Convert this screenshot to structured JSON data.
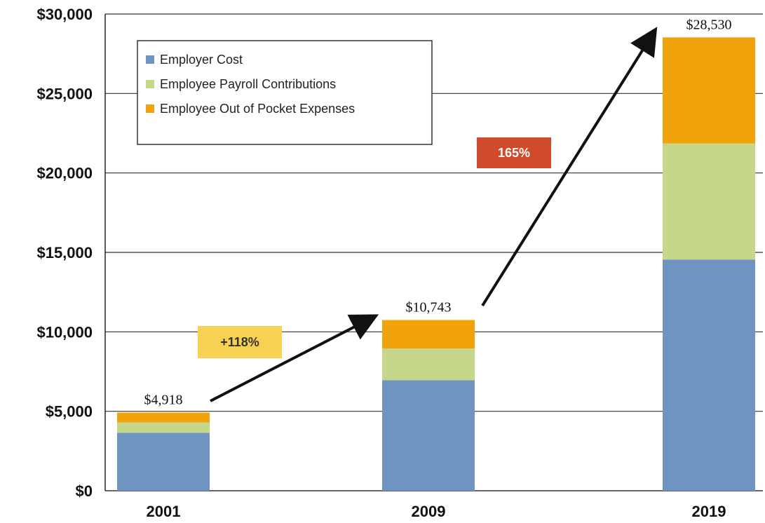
{
  "chart_data": {
    "type": "bar",
    "stacked": true,
    "categories": [
      "2001",
      "2009",
      "2019"
    ],
    "series": [
      {
        "name": "Employer Cost",
        "values": [
          3650,
          6950,
          14550
        ],
        "color": "#7094c2"
      },
      {
        "name": "Employee Payroll Contributions",
        "values": [
          650,
          2000,
          7300
        ],
        "color": "#c6d68a"
      },
      {
        "name": "Employee Out of Pocket Expenses",
        "values": [
          618,
          1793,
          6680
        ],
        "color": "#f0a30a"
      }
    ],
    "totals": [
      "$4,918",
      "$10,743",
      "$28,530"
    ],
    "y_ticks": [
      {
        "value": 0,
        "label": "$0"
      },
      {
        "value": 5000,
        "label": "$5,000"
      },
      {
        "value": 10000,
        "label": "$10,000"
      },
      {
        "value": 15000,
        "label": "$15,000"
      },
      {
        "value": 20000,
        "label": "$20,000"
      },
      {
        "value": 25000,
        "label": "$25,000"
      },
      {
        "value": 30000,
        "label": "$30,000"
      }
    ],
    "ylim": [
      0,
      30000
    ],
    "grid": true,
    "legend_position": "top-left",
    "annotations": [
      {
        "text": "+118%",
        "background": "#f7d154",
        "color": "#333333"
      },
      {
        "text": "165%",
        "background": "#d04a2c",
        "color": "#ffffff"
      }
    ],
    "title": "",
    "xlabel": "",
    "ylabel": ""
  }
}
